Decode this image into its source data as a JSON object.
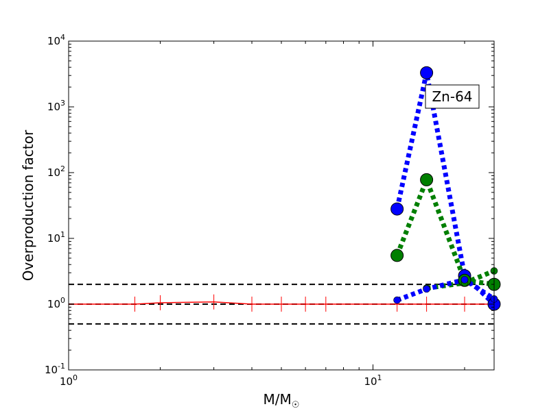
{
  "chart_data": {
    "type": "line",
    "xlabel": "M/M",
    "xlabel_sub": "☉",
    "ylabel": "Overproduction factor",
    "xscale": "log",
    "yscale": "log",
    "xlim": [
      1,
      25
    ],
    "ylim": [
      0.1,
      10000
    ],
    "x_ticks": [
      {
        "base": "10",
        "exp": "0",
        "value": 1
      },
      {
        "base": "10",
        "exp": "1",
        "value": 10
      }
    ],
    "y_ticks": [
      {
        "base": "10",
        "exp": "-1",
        "value": 0.1
      },
      {
        "base": "10",
        "exp": "0",
        "value": 1
      },
      {
        "base": "10",
        "exp": "1",
        "value": 10
      },
      {
        "base": "10",
        "exp": "2",
        "value": 100
      },
      {
        "base": "10",
        "exp": "3",
        "value": 1000
      },
      {
        "base": "10",
        "exp": "4",
        "value": 10000
      }
    ],
    "annotation": "Zn-64",
    "reference_lines": [
      0.5,
      1.0,
      2.0
    ],
    "series": [
      {
        "color": "#ff0000",
        "style": "solid",
        "marker": "vline",
        "x": [
          1,
          1.65,
          2,
          3,
          4,
          5,
          6,
          7,
          12,
          15,
          20,
          25
        ],
        "y": [
          1.0,
          1.0,
          1.05,
          1.08,
          1.0,
          1.0,
          1.0,
          1.0,
          1.0,
          1.0,
          1.0,
          1.0
        ]
      },
      {
        "color": "#0000ff",
        "style": "dotted",
        "marker": "circle",
        "x": [
          12,
          15,
          20,
          25
        ],
        "y": [
          28,
          3300,
          2.7,
          1.0
        ]
      },
      {
        "color": "#007f00",
        "style": "dotted",
        "marker": "circle",
        "x": [
          12,
          15,
          20,
          25
        ],
        "y": [
          5.5,
          78,
          2.3,
          2.0
        ]
      },
      {
        "color": "#007f00",
        "style": "dotted",
        "marker": "circle-small",
        "x": [
          15,
          20,
          25
        ],
        "y": [
          1.75,
          2.1,
          3.2
        ]
      },
      {
        "color": "#0000ff",
        "style": "dotted",
        "marker": "circle-small",
        "x": [
          12,
          15,
          20,
          25
        ],
        "y": [
          1.15,
          1.7,
          2.35,
          1.2
        ]
      }
    ]
  }
}
